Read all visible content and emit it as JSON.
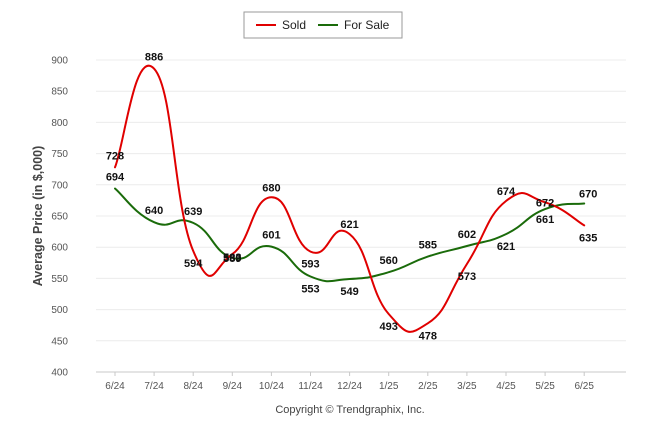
{
  "chart_data": {
    "type": "line",
    "title": "",
    "ylabel": "Average Price (in $,000)",
    "xlabel": "",
    "categories": [
      "6/24",
      "7/24",
      "8/24",
      "9/24",
      "10/24",
      "11/24",
      "12/24",
      "1/25",
      "2/25",
      "3/25",
      "4/25",
      "5/25",
      "6/25"
    ],
    "series": [
      {
        "name": "Sold",
        "color": "#e00000",
        "values": [
          728,
          886,
          594,
          589,
          680,
          593,
          621,
          493,
          478,
          573,
          674,
          672,
          635
        ],
        "labels": [
          "728",
          "886",
          "594",
          "589",
          "680",
          "593",
          "621",
          "493",
          "478",
          "573",
          "674",
          "672",
          "635"
        ]
      },
      {
        "name": "For Sale",
        "color": "#1a6b0a",
        "values": [
          694,
          640,
          639,
          583,
          601,
          553,
          549,
          560,
          585,
          602,
          621,
          661,
          670
        ],
        "labels": [
          "694",
          "640",
          "639",
          "583",
          "601",
          "553",
          "549",
          "560",
          "585",
          "602",
          "621",
          "661",
          "670"
        ]
      }
    ],
    "ylim": [
      400,
      900
    ],
    "y_ticks": [
      "400",
      "450",
      "500",
      "550",
      "600",
      "650",
      "700",
      "750",
      "800",
      "850",
      "900"
    ],
    "grid": true,
    "legend_position": "top-center",
    "credit": "Copyright © Trendgraphix, Inc."
  }
}
